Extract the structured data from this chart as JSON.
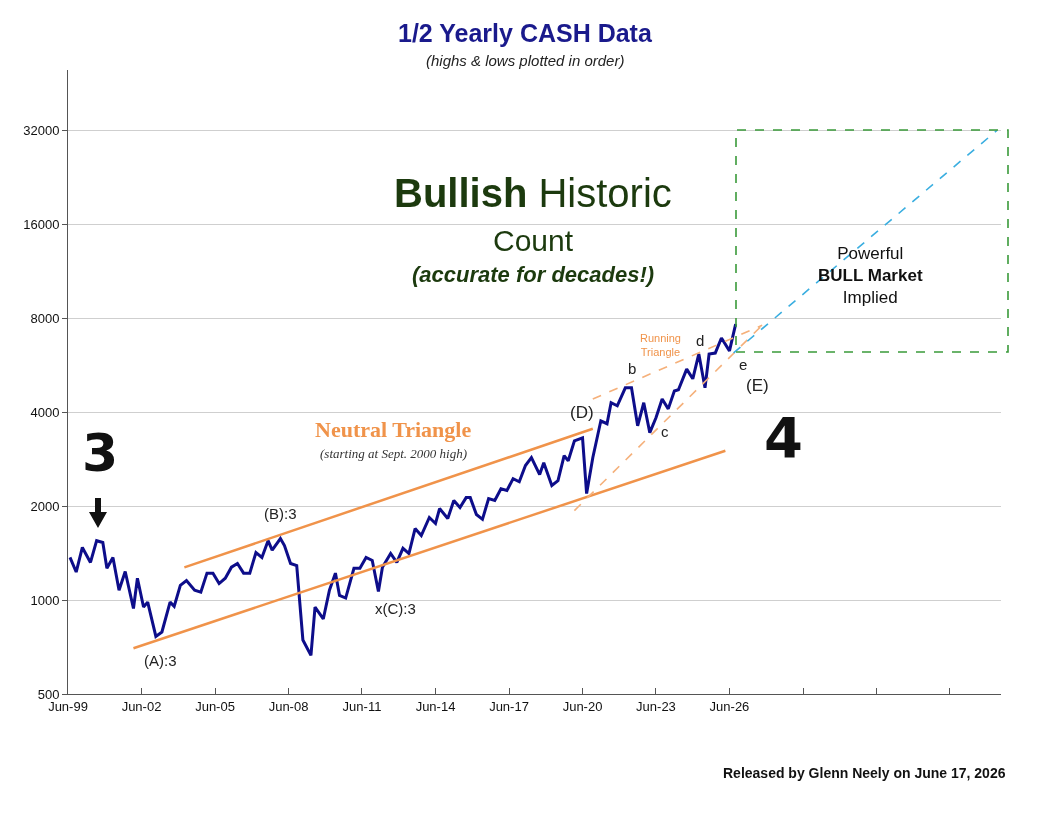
{
  "chart_data": {
    "type": "line",
    "title": "1/2 Yearly CASH Data",
    "subtitle": "(highs & lows plotted in order)",
    "log": "y",
    "grid": "y",
    "marker": "none",
    "xlim": [
      "1999-06",
      "2037-07"
    ],
    "xticks": [
      {
        "value": "1999-06",
        "label": "Jun-99"
      },
      {
        "value": "2002-06",
        "label": "Jun-02"
      },
      {
        "value": "2005-06",
        "label": "Jun-05"
      },
      {
        "value": "2008-06",
        "label": "Jun-08"
      },
      {
        "value": "2011-06",
        "label": "Jun-11"
      },
      {
        "value": "2014-06",
        "label": "Jun-14"
      },
      {
        "value": "2017-06",
        "label": "Jun-17"
      },
      {
        "value": "2020-06",
        "label": "Jun-20"
      },
      {
        "value": "2023-06",
        "label": "Jun-23"
      },
      {
        "value": "2026-06",
        "label": "Jun-26"
      },
      {
        "value": "2029-06",
        "label": null
      },
      {
        "value": "2032-06",
        "label": null
      },
      {
        "value": "2035-06",
        "label": null
      }
    ],
    "ylim": [
      500,
      50000
    ],
    "yticks": [
      500,
      1000,
      2000,
      4000,
      8000,
      16000,
      32000
    ],
    "series": [
      {
        "color": "#0d0d8a",
        "line_style": "solid",
        "x": [
          "1999-07",
          "1999-10",
          "2000-01",
          "2000-05",
          "2000-08",
          "2000-11",
          "2001-01",
          "2001-04",
          "2001-07",
          "2001-10",
          "2002-02",
          "2002-04",
          "2002-07",
          "2002-09",
          "2003-01",
          "2003-04",
          "2003-08",
          "2003-10",
          "2004-01",
          "2004-04",
          "2004-08",
          "2004-11",
          "2005-02",
          "2005-05",
          "2005-08",
          "2005-11",
          "2006-02",
          "2006-05",
          "2006-08",
          "2006-11",
          "2007-02",
          "2007-05",
          "2007-08",
          "2007-10",
          "2008-02",
          "2008-04",
          "2008-07",
          "2008-10",
          "2009-01",
          "2009-05",
          "2009-07",
          "2009-11",
          "2010-02",
          "2010-05",
          "2010-07",
          "2010-10",
          "2011-02",
          "2011-05",
          "2011-08",
          "2011-11",
          "2012-02",
          "2012-04",
          "2012-08",
          "2012-11",
          "2013-02",
          "2013-05",
          "2013-08",
          "2013-11",
          "2014-03",
          "2014-06",
          "2014-08",
          "2014-12",
          "2015-03",
          "2015-06",
          "2015-09",
          "2015-11",
          "2016-02",
          "2016-05",
          "2016-08",
          "2016-11",
          "2017-02",
          "2017-05",
          "2017-08",
          "2017-11",
          "2018-02",
          "2018-05",
          "2018-09",
          "2018-11",
          "2019-03",
          "2019-06",
          "2019-09",
          "2019-11",
          "2020-02",
          "2020-06",
          "2020-08",
          "2020-11",
          "2021-03",
          "2021-06",
          "2021-08",
          "2021-11",
          "2022-03",
          "2022-06",
          "2022-09",
          "2022-12",
          "2023-03",
          "2023-06",
          "2023-09",
          "2023-12",
          "2024-03",
          "2024-05",
          "2024-09",
          "2024-12",
          "2025-03",
          "2025-06",
          "2025-08",
          "2025-11",
          "2026-02",
          "2026-06",
          "2026-09"
        ],
        "values": [
          1370,
          1230,
          1475,
          1320,
          1550,
          1530,
          1265,
          1370,
          1075,
          1235,
          940,
          1175,
          950,
          985,
          765,
          790,
          985,
          955,
          1115,
          1155,
          1075,
          1060,
          1220,
          1220,
          1130,
          1175,
          1275,
          1310,
          1220,
          1220,
          1420,
          1370,
          1550,
          1445,
          1575,
          1495,
          1310,
          1290,
          745,
          665,
          950,
          870,
          1075,
          1220,
          1035,
          1015,
          1265,
          1265,
          1370,
          1340,
          1065,
          1275,
          1410,
          1320,
          1465,
          1410,
          1695,
          1610,
          1840,
          1760,
          1965,
          1825,
          2085,
          1980,
          2130,
          2130,
          1880,
          1815,
          2115,
          2085,
          2275,
          2245,
          2450,
          2395,
          2700,
          2860,
          2525,
          2755,
          2330,
          2415,
          2905,
          2795,
          3240,
          3310,
          2195,
          2860,
          3755,
          3675,
          4290,
          4195,
          4790,
          4790,
          3620,
          4290,
          3440,
          3840,
          4410,
          4100,
          4680,
          4720,
          5500,
          5120,
          6150,
          4790,
          6150,
          6190,
          6920,
          6290,
          7660
        ]
      },
      {
        "color": "#f0934a",
        "line_style": "solid",
        "x": [
          "2004-03",
          "2020-11"
        ],
        "values": [
          1273,
          3540
        ]
      },
      {
        "color": "#f0934a",
        "line_style": "solid",
        "x": [
          "2002-02",
          "2026-04"
        ],
        "values": [
          701,
          3010
        ]
      },
      {
        "color": "#f5b07a",
        "line_style": "dashed",
        "x": [
          "2020-11",
          "2027-10"
        ],
        "values": [
          4410,
          7600
        ]
      },
      {
        "color": "#f5b07a",
        "line_style": "dashed",
        "x": [
          "2020-02",
          "2027-10"
        ],
        "values": [
          1936,
          7600
        ]
      },
      {
        "color": "#3aaee0",
        "line_style": "dashed",
        "x": [
          "2026-08",
          "2037-05"
        ],
        "values": [
          6200,
          32000
        ]
      }
    ],
    "annotations": [
      "Bullish Historic",
      "Count",
      "(accurate for decades!)",
      "Released by Glenn Neely on June 17, 2026",
      "3",
      "4",
      "(A):3",
      "(B):3",
      "x(C):3",
      "(D)",
      "b",
      "c",
      "d",
      "e",
      "(E)",
      "Running\nTriangle",
      "Neutral Triangle",
      "(starting at Sept. 2000 high)",
      "Powerful\nBULL Market\nImplied"
    ]
  }
}
